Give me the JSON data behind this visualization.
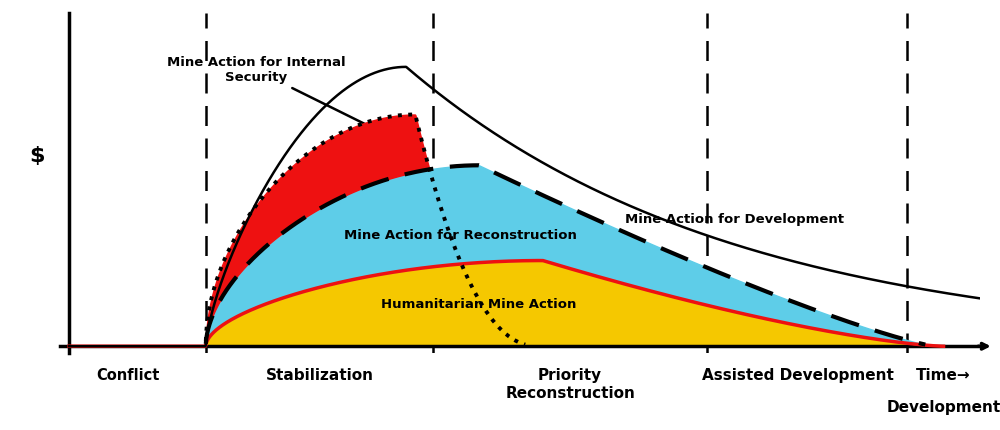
{
  "x_min": 0,
  "x_max": 10,
  "y_min": 0,
  "y_max": 1.0,
  "vline_positions": [
    1.5,
    4.0,
    7.0,
    9.2
  ],
  "background_color": "#ffffff",
  "color_yellow": "#F5C800",
  "color_red_border": "#EE1111",
  "color_cyan": "#5ECDE8",
  "color_red_fill": "#EE1111",
  "ylabel": "$",
  "annotation_internal_security": "Mine Action for Internal\nSecurity",
  "annotation_reconstruction": "Mine Action for Reconstruction",
  "annotation_humanitarian": "Humanitarian Mine Action",
  "annotation_development": "Mine Action for Development"
}
